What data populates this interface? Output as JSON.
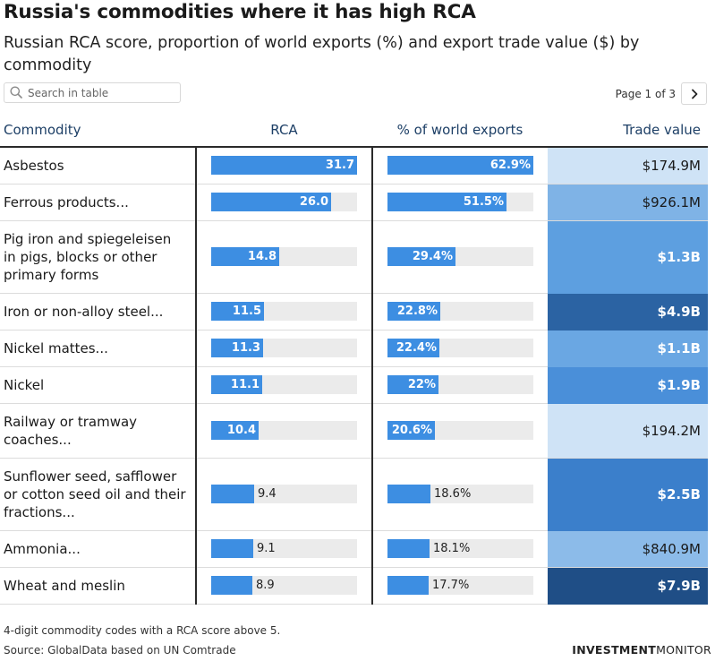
{
  "title": "Russia's commodities where it has high RCA",
  "subtitle": "Russian RCA score, proportion of world exports (%) and export trade value ($) by commodity",
  "search": {
    "placeholder": "Search in table",
    "icon": "search-icon"
  },
  "pagination": {
    "label": "Page 1 of 3",
    "next_icon": "chevron-right-icon"
  },
  "footer": {
    "note": "4-digit commodity codes with a RCA score above 5.",
    "source": "Source: GlobalData based on UN Comtrade",
    "brand_bold": "INVESTMENT",
    "brand_light": "MONITOR"
  },
  "colors": {
    "bar": "#3d8ee2",
    "track": "#ebebeb",
    "header_text": "#1d3f66"
  },
  "chart_data": {
    "type": "table",
    "columns": [
      "Commodity",
      "RCA",
      "% of world exports",
      "Trade value"
    ],
    "rca_max": 31.7,
    "share_max": 62.9,
    "rows": [
      {
        "commodity": "Asbestos",
        "rca": 31.7,
        "rca_label": "31.7",
        "share": 62.9,
        "share_label": "62.9%",
        "trade_value": "$174.9M",
        "trade_value_usd_m": 174.9,
        "cell_color": "#cfe3f6"
      },
      {
        "commodity": "Ferrous products...",
        "rca": 26.0,
        "rca_label": "26.0",
        "share": 51.5,
        "share_label": "51.5%",
        "trade_value": "$926.1M",
        "trade_value_usd_m": 926.1,
        "cell_color": "#7fb3e6"
      },
      {
        "commodity": "Pig iron and spiegeleisen in pigs, blocks or other primary forms",
        "rca": 14.8,
        "rca_label": "14.8",
        "share": 29.4,
        "share_label": "29.4%",
        "trade_value": "$1.3B",
        "trade_value_usd_m": 1300,
        "cell_color": "#5d9fe0"
      },
      {
        "commodity": "Iron or non-alloy steel...",
        "rca": 11.5,
        "rca_label": "11.5",
        "share": 22.8,
        "share_label": "22.8%",
        "trade_value": "$4.9B",
        "trade_value_usd_m": 4900,
        "cell_color": "#2b63a3"
      },
      {
        "commodity": "Nickel mattes...",
        "rca": 11.3,
        "rca_label": "11.3",
        "share": 22.4,
        "share_label": "22.4%",
        "trade_value": "$1.1B",
        "trade_value_usd_m": 1100,
        "cell_color": "#6aa7e3"
      },
      {
        "commodity": "Nickel",
        "rca": 11.1,
        "rca_label": "11.1",
        "share": 22,
        "share_label": "22%",
        "trade_value": "$1.9B",
        "trade_value_usd_m": 1900,
        "cell_color": "#4a8fd9"
      },
      {
        "commodity": "Railway or tramway coaches...",
        "rca": 10.4,
        "rca_label": "10.4",
        "share": 20.6,
        "share_label": "20.6%",
        "trade_value": "$194.2M",
        "trade_value_usd_m": 194.2,
        "cell_color": "#cfe3f6"
      },
      {
        "commodity": "Sunflower seed, safflower or cotton seed oil and their fractions...",
        "rca": 9.4,
        "rca_label": "9.4",
        "share": 18.6,
        "share_label": "18.6%",
        "trade_value": "$2.5B",
        "trade_value_usd_m": 2500,
        "cell_color": "#3b7fcb"
      },
      {
        "commodity": "Ammonia...",
        "rca": 9.1,
        "rca_label": "9.1",
        "share": 18.1,
        "share_label": "18.1%",
        "trade_value": "$840.9M",
        "trade_value_usd_m": 840.9,
        "cell_color": "#8cbbe9"
      },
      {
        "commodity": "Wheat and meslin",
        "rca": 8.9,
        "rca_label": "8.9",
        "share": 17.7,
        "share_label": "17.7%",
        "trade_value": "$7.9B",
        "trade_value_usd_m": 7900,
        "cell_color": "#1f4e86"
      }
    ]
  }
}
